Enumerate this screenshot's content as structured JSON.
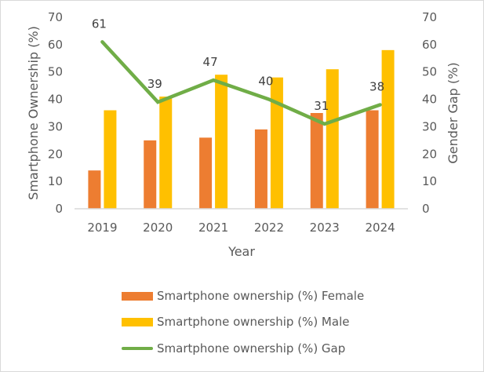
{
  "chart_data": {
    "type": "bar",
    "title": "",
    "xlabel": "Year",
    "ylabel": "Smartphone Ownership (%)",
    "y2label": "Gender Gap (%)",
    "ylim": [
      0,
      70
    ],
    "y2lim": [
      0,
      70
    ],
    "yticks": [
      "0",
      "10",
      "20",
      "30",
      "40",
      "50",
      "60",
      "70"
    ],
    "y2ticks": [
      "0",
      "10",
      "20",
      "30",
      "40",
      "50",
      "60",
      "70"
    ],
    "categories": [
      "2019",
      "2020",
      "2021",
      "2022",
      "2023",
      "2024"
    ],
    "grid": false,
    "legend_position": "bottom",
    "series": [
      {
        "name": "Smartphone ownership (%) Female",
        "type": "bar",
        "axis": "left",
        "color": "#ED7D31",
        "values": [
          14,
          25,
          26,
          29,
          35,
          36
        ]
      },
      {
        "name": "Smartphone ownership (%) Male",
        "type": "bar",
        "axis": "left",
        "color": "#FFC000",
        "values": [
          36,
          41,
          49,
          48,
          51,
          58
        ]
      },
      {
        "name": "Smartphone ownership (%) Gap",
        "type": "line",
        "axis": "right",
        "color": "#70AD47",
        "values": [
          61,
          39,
          47,
          40,
          31,
          38
        ],
        "data_labels": [
          "61",
          "39",
          "47",
          "40",
          "31",
          "38"
        ]
      }
    ]
  }
}
